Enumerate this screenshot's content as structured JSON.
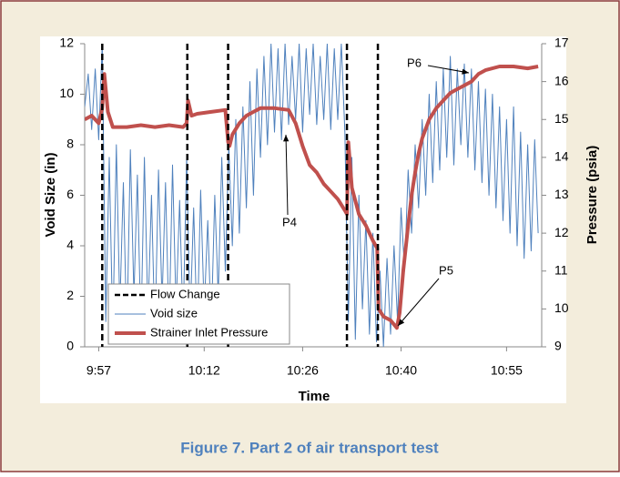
{
  "chart_data": {
    "type": "line",
    "x_label": "Time",
    "y_label": "Void Size (in)",
    "y2_label": "Pressure (psia)",
    "xlim": [
      595,
      660
    ],
    "xticks": [
      {
        "value": 597,
        "label": "9:57"
      },
      {
        "value": 612,
        "label": "10:12"
      },
      {
        "value": 626,
        "label": "10:26"
      },
      {
        "value": 640,
        "label": "10:40"
      },
      {
        "value": 655,
        "label": "10:55"
      }
    ],
    "ylim": [
      0,
      12
    ],
    "yticks": [
      0,
      2,
      4,
      6,
      8,
      10,
      12
    ],
    "y2lim": [
      9,
      17
    ],
    "y2ticks": [
      9,
      10,
      11,
      12,
      13,
      14,
      15,
      16,
      17
    ],
    "vlines": {
      "name": "Flow Change",
      "color": "#000000",
      "x": [
        597.5,
        609.6,
        615.4,
        632.3,
        636.7
      ]
    },
    "series": [
      {
        "name": "Void size",
        "color": "#4f81bd",
        "x": [
          595,
          595.5,
          596,
          596.5,
          597,
          597.5,
          598,
          598.5,
          599,
          599.5,
          600,
          600.5,
          601,
          601.5,
          602,
          602.5,
          603,
          603.5,
          604,
          604.5,
          605,
          605.5,
          606,
          606.5,
          607,
          607.5,
          608,
          608.5,
          609,
          609.5,
          610,
          610.5,
          611,
          611.5,
          612,
          612.5,
          613,
          613.5,
          614,
          614.5,
          615,
          615.5,
          616,
          616.5,
          617,
          617.5,
          618,
          618.5,
          619,
          619.5,
          620,
          620.5,
          621,
          621.5,
          622,
          622.5,
          623,
          623.5,
          624,
          624.5,
          625,
          625.5,
          626,
          626.5,
          627,
          627.5,
          628,
          628.5,
          629,
          629.5,
          630,
          630.5,
          631,
          631.5,
          632,
          632.5,
          633,
          633.5,
          634,
          634.5,
          635,
          635.5,
          636,
          636.5,
          637,
          637.5,
          638,
          638.5,
          639,
          639.5,
          640,
          640.5,
          641,
          641.5,
          642,
          642.5,
          643,
          643.5,
          644,
          644.5,
          645,
          645.5,
          646,
          646.5,
          647,
          647.5,
          648,
          648.5,
          649,
          649.5,
          650,
          650.5,
          651,
          651.5,
          652,
          652.5,
          653,
          653.5,
          654,
          654.5,
          655,
          655.5,
          656,
          656.5,
          657,
          657.5,
          658,
          658.5,
          659,
          659.5
        ],
        "values": [
          9.5,
          10.8,
          8.6,
          11,
          8.2,
          12,
          1,
          7.5,
          0.5,
          8,
          1.5,
          6.5,
          0.3,
          7.8,
          2,
          6.8,
          0.5,
          7.5,
          1.2,
          6,
          0.4,
          7,
          1.8,
          6.5,
          0.6,
          7.2,
          1.5,
          5.8,
          0.8,
          7.5,
          1,
          5.5,
          0.5,
          6.2,
          1.4,
          5,
          0.7,
          6,
          2,
          7.5,
          3,
          8,
          4,
          9,
          4.5,
          9.5,
          5.5,
          10.5,
          6,
          11,
          7.5,
          11.5,
          8,
          12,
          8.5,
          11.8,
          8.2,
          12,
          8.8,
          11.5,
          9,
          12,
          8.5,
          11.8,
          9.2,
          12,
          8.8,
          11.5,
          9,
          12,
          8.6,
          11.8,
          9,
          12,
          8.5,
          1,
          7.5,
          0.3,
          6,
          1.5,
          5,
          0.5,
          4.5,
          0.2,
          3,
          0,
          3.5,
          0.5,
          4,
          1,
          5.5,
          3,
          7,
          4.5,
          8,
          5.5,
          9,
          6,
          10,
          6.5,
          10.5,
          7,
          11,
          7.5,
          11.5,
          7.2,
          11,
          8,
          11.2,
          7.5,
          11,
          7,
          10.5,
          6.5,
          10.2,
          6,
          10,
          5.5,
          9.5,
          5,
          9,
          4.5,
          9.5,
          4,
          8.5,
          3.5,
          8,
          3.8,
          8.2,
          4.5
        ]
      },
      {
        "name": "Strainer Inlet Pressure",
        "color": "#c0504d",
        "axis": "y2",
        "x": [
          595,
          596,
          597,
          597.5,
          597.8,
          598.3,
          599,
          601,
          603,
          605,
          607,
          609,
          609.5,
          609.7,
          610.2,
          611,
          613,
          615,
          615.4,
          615.6,
          616,
          617,
          618,
          619,
          620,
          622,
          624,
          625,
          626,
          627,
          628,
          629,
          630,
          631,
          632,
          632.3,
          632.5,
          633,
          634,
          635,
          636,
          636.6,
          636.8,
          637.5,
          638.5,
          639.4,
          639.8,
          640.3,
          641,
          641.5,
          642,
          642.5,
          643,
          644,
          645,
          646,
          647,
          648,
          649,
          650,
          651,
          652,
          654,
          656,
          658,
          659.5
        ],
        "values": [
          15.0,
          15.1,
          14.9,
          15.3,
          16.2,
          15.2,
          14.8,
          14.8,
          14.85,
          14.8,
          14.85,
          14.8,
          14.9,
          15.5,
          15.1,
          15.15,
          15.2,
          15.25,
          14.4,
          14.3,
          14.6,
          14.9,
          15.1,
          15.2,
          15.3,
          15.3,
          15.25,
          14.9,
          14.3,
          13.8,
          13.6,
          13.3,
          13.1,
          12.9,
          12.6,
          12.5,
          14.4,
          13.2,
          12.5,
          12.2,
          11.8,
          11.6,
          10.0,
          9.8,
          9.7,
          9.5,
          9.9,
          11.0,
          12.2,
          13.0,
          13.6,
          14.1,
          14.5,
          15.0,
          15.3,
          15.5,
          15.7,
          15.8,
          15.9,
          16.0,
          16.2,
          16.3,
          16.4,
          16.4,
          16.35,
          16.4
        ]
      }
    ],
    "annotations": [
      {
        "text": "P4"
      },
      {
        "text": "P5"
      },
      {
        "text": "P6"
      }
    ],
    "legend": "lower left"
  },
  "caption": "Figure 7. Part 2 of air transport test"
}
